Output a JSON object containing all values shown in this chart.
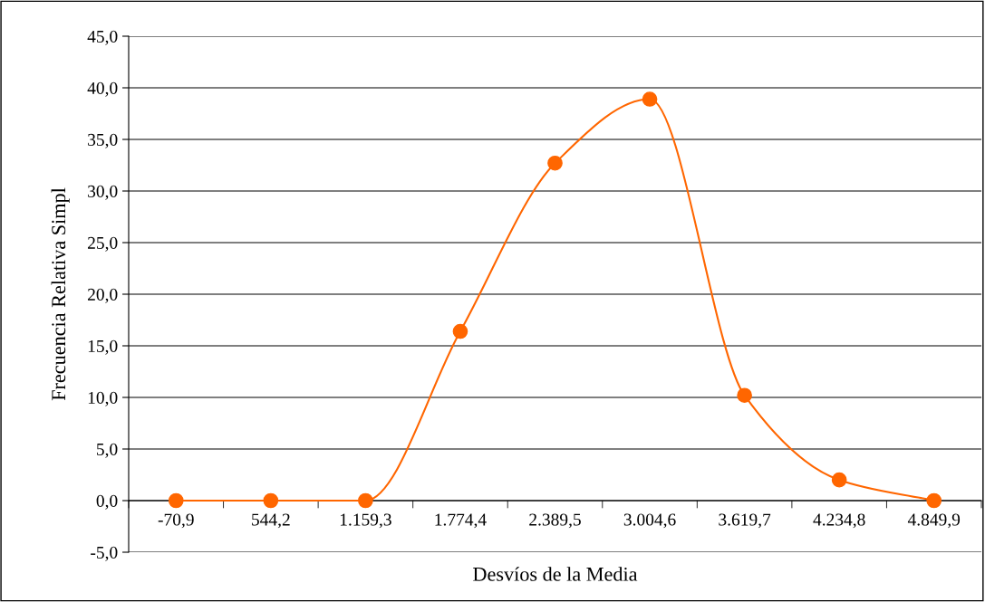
{
  "chart_data": {
    "type": "line",
    "xlabel": "Desvíos de la Media",
    "ylabel": "Frecuencia Relativa Simpl",
    "categories": [
      "-70,9",
      "544,2",
      "1.159,3",
      "1.774,4",
      "2.389,5",
      "3.004,6",
      "3.619,7",
      "4.234,8",
      "4.849,9"
    ],
    "series": [
      {
        "color": "#ff6600",
        "values": [
          0.0,
          0.0,
          0.0,
          16.4,
          32.7,
          38.9,
          10.2,
          2.0,
          0.0
        ]
      }
    ],
    "ylim": [
      -5,
      45
    ],
    "yticks": [
      {
        "value": -5,
        "label": "-5,0"
      },
      {
        "value": 0,
        "label": "0,0"
      },
      {
        "value": 5,
        "label": "5,0"
      },
      {
        "value": 10,
        "label": "10,0"
      },
      {
        "value": 15,
        "label": "15,0"
      },
      {
        "value": 20,
        "label": "20,0"
      },
      {
        "value": 25,
        "label": "25,0"
      },
      {
        "value": 30,
        "label": "30,0"
      },
      {
        "value": 35,
        "label": "35,0"
      },
      {
        "value": 40,
        "label": "40,0"
      },
      {
        "value": 45,
        "label": "45,0"
      }
    ],
    "grid": "y",
    "marker": "circle",
    "line_style": "solid"
  }
}
